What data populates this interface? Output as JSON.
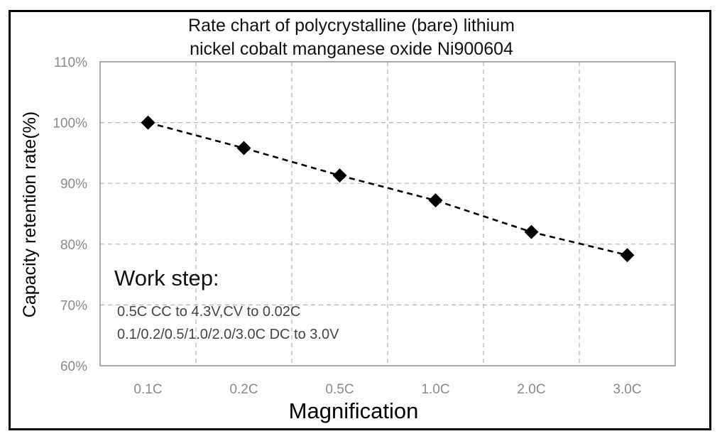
{
  "chart_data": {
    "type": "line",
    "title": [
      "Rate chart of polycrystalline (bare) lithium",
      "nickel cobalt manganese oxide Ni900604"
    ],
    "xlabel": "Magnification",
    "ylabel": "Capacity retention rate(%)",
    "categories": [
      "0.1C",
      "0.2C",
      "0.5C",
      "1.0C",
      "2.0C",
      "3.0C"
    ],
    "series": [
      {
        "values": [
          100,
          95.8,
          91.3,
          87.2,
          82.0,
          78.2
        ]
      }
    ],
    "yticks": [
      "60%",
      "70%",
      "80%",
      "90%",
      "100%",
      "110%"
    ],
    "ylim": [
      60,
      110
    ],
    "grid": true,
    "line_style": "dashed",
    "marker": "diamond",
    "annotation": {
      "heading": "Work step:",
      "lines": [
        "0.5C CC to 4.3V,CV to 0.02C",
        "0.1/0.2/0.5/1.0/2.0/3.0C DC to 3.0V"
      ]
    },
    "colors": {
      "series": "#000000",
      "grid": "#b5b5b5",
      "ticks": "#8a8a8a"
    }
  }
}
